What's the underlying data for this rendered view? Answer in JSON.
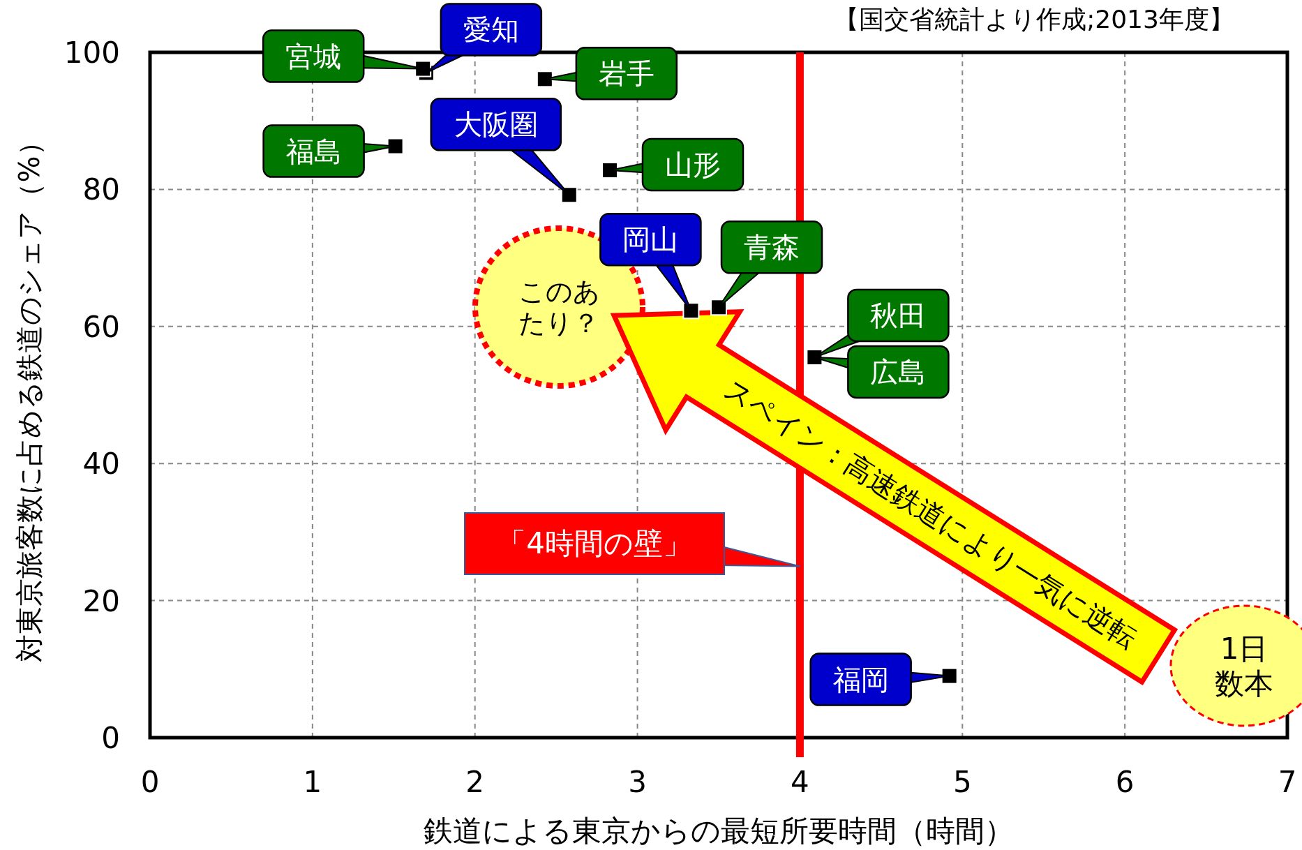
{
  "chart_data": {
    "type": "scatter",
    "xlabel": "鉄道による東京からの最短所要時間（時間）",
    "ylabel": "対東京旅客数に占める鉄道のシェア（%）",
    "xlim": [
      0,
      7
    ],
    "ylim": [
      0,
      100
    ],
    "xticks": [
      0,
      1,
      2,
      3,
      4,
      5,
      6,
      7
    ],
    "yticks": [
      0,
      20,
      40,
      60,
      80,
      100
    ],
    "grid": true,
    "marker": "square",
    "series": [
      {
        "color": "#000000",
        "x": [
          1.68,
          2.43,
          1.51,
          2.83,
          3.5,
          4.09
        ],
        "values": [
          97.6,
          96.1,
          86.3,
          82.8,
          62.8,
          55.5
        ]
      },
      {
        "color": "#000000",
        "x": [
          1.7,
          2.58,
          3.33,
          4.92
        ],
        "values": [
          97.0,
          79.2,
          62.3,
          9.0
        ]
      }
    ],
    "ref_lines": [
      {
        "axis": "x",
        "value": 4,
        "color": "#ff0000"
      }
    ],
    "annotations": [
      {
        "text": "宮城",
        "x": 1.68,
        "y": 97.6
      },
      {
        "text": "愛知",
        "x": 1.7,
        "y": 97.0
      },
      {
        "text": "岩手",
        "x": 2.43,
        "y": 96.1
      },
      {
        "text": "福島",
        "x": 1.51,
        "y": 86.3
      },
      {
        "text": "大阪圏",
        "x": 2.58,
        "y": 79.2
      },
      {
        "text": "山形",
        "x": 2.83,
        "y": 82.8
      },
      {
        "text": "岡山",
        "x": 3.33,
        "y": 62.3
      },
      {
        "text": "青森",
        "x": 3.5,
        "y": 62.8
      },
      {
        "text": "秋田",
        "x": 4.09,
        "y": 55.5
      },
      {
        "text": "広島",
        "x": 4.09,
        "y": 55.5
      },
      {
        "text": "福岡",
        "x": 4.92,
        "y": 9.0
      },
      "【国交省統計より作成;2013年度】",
      "このあたり？",
      "スペイン：高速鉄道により一気に逆転",
      "1日数本",
      {
        "text": "「4時間の壁」",
        "x": 4,
        "y": 25
      }
    ]
  }
}
